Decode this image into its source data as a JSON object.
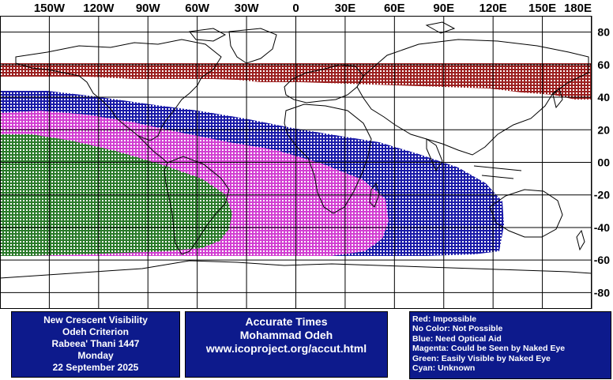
{
  "map": {
    "lon_labels": [
      "150W",
      "120W",
      "90W",
      "60W",
      "30W",
      "0",
      "30E",
      "60E",
      "90E",
      "120E",
      "150E",
      "180E"
    ],
    "lat_labels": [
      "80",
      "60",
      "40",
      "20",
      "00",
      "-20",
      "-40",
      "-60",
      "-80"
    ],
    "zone_colors": {
      "red": "#9b2020",
      "blue": "#1a1aa8",
      "magenta": "#d23fd2",
      "green": "#2a7a2a"
    }
  },
  "info_left": {
    "line1": "New Crescent Visibility",
    "line2": "Odeh Criterion",
    "line3": "Rabeea' Thani 1447",
    "line4": "Monday",
    "line5": "22 September 2025"
  },
  "info_center": {
    "line1": "Accurate Times",
    "line2": "Mohammad Odeh",
    "line3": "www.icoproject.org/accut.html"
  },
  "legend": {
    "items": [
      "Red: Impossible",
      "No Color: Not Possible",
      "Blue: Need Optical Aid",
      "Magenta: Could be Seen by Naked Eye",
      "Green: Easily Visible by Naked Eye",
      "Cyan: Unknown"
    ]
  }
}
